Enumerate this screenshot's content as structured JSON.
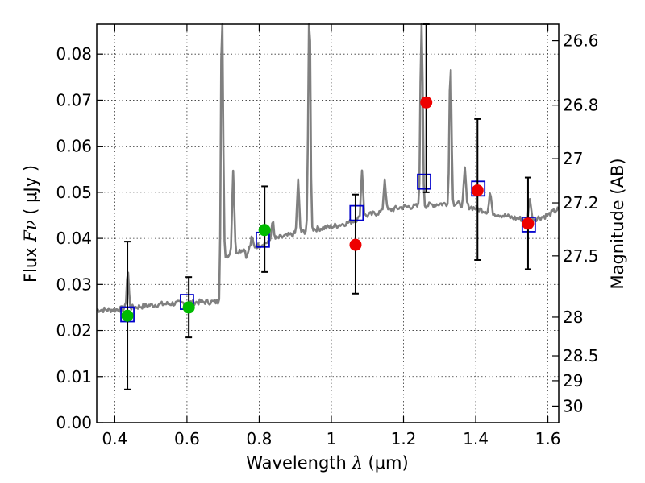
{
  "chart_data": {
    "type": "scatter",
    "title": "",
    "xlabel_text": "Wavelength  ",
    "xlabel_symbol": "λ",
    "xlabel_unit": " (μm)",
    "ylabel_text": "Flux  ",
    "ylabel_symbol": "Fν",
    "ylabel_unit": " ( μJy )",
    "y2label": "Magnitude (AB)",
    "xlim": [
      0.35,
      1.63
    ],
    "ylim": [
      0.0,
      0.0865
    ],
    "grid": true,
    "xticks": [
      0.4,
      0.6,
      0.8,
      1.0,
      1.2,
      1.4,
      1.6
    ],
    "xtick_labels": [
      "0.4",
      "0.6",
      "0.8",
      "1",
      "1.2",
      "1.4",
      "1.6"
    ],
    "yticks": [
      0.0,
      0.01,
      0.02,
      0.03,
      0.04,
      0.05,
      0.06,
      0.07,
      0.08
    ],
    "ytick_labels": [
      "0.00",
      "0.01",
      "0.02",
      "0.03",
      "0.04",
      "0.05",
      "0.06",
      "0.07",
      "0.08"
    ],
    "mag_ticks": [
      {
        "label": "26.6",
        "flux": 0.0829
      },
      {
        "label": "26.8",
        "flux": 0.0689
      },
      {
        "label": "27",
        "flux": 0.0573
      },
      {
        "label": "27.2",
        "flux": 0.0477
      },
      {
        "label": "27.5",
        "flux": 0.0362
      },
      {
        "label": "28",
        "flux": 0.0229
      },
      {
        "label": "28.5",
        "flux": 0.0145
      },
      {
        "label": "29",
        "flux": 0.0091
      },
      {
        "label": "30",
        "flux": 0.0036
      }
    ],
    "colors": {
      "spectrum": "#808080",
      "model_box": "#0000cc",
      "green": "#00bb00",
      "red": "#ee0000",
      "errorbar": "#000000"
    },
    "spectrum": {
      "continuum": [
        [
          0.35,
          0.0245
        ],
        [
          0.4,
          0.0245
        ],
        [
          0.45,
          0.025
        ],
        [
          0.5,
          0.0255
        ],
        [
          0.55,
          0.0258
        ],
        [
          0.6,
          0.026
        ],
        [
          0.65,
          0.0262
        ],
        [
          0.69,
          0.0262
        ],
        [
          0.7,
          0.036
        ],
        [
          0.75,
          0.0375
        ],
        [
          0.8,
          0.0385
        ],
        [
          0.85,
          0.04
        ],
        [
          0.9,
          0.041
        ],
        [
          0.95,
          0.042
        ],
        [
          1.0,
          0.0425
        ],
        [
          1.05,
          0.0435
        ],
        [
          1.1,
          0.045
        ],
        [
          1.15,
          0.046
        ],
        [
          1.2,
          0.0468
        ],
        [
          1.25,
          0.047
        ],
        [
          1.3,
          0.0475
        ],
        [
          1.35,
          0.0475
        ],
        [
          1.4,
          0.0465
        ],
        [
          1.45,
          0.0455
        ],
        [
          1.5,
          0.0445
        ],
        [
          1.55,
          0.044
        ],
        [
          1.6,
          0.045
        ],
        [
          1.63,
          0.0465
        ]
      ],
      "lines": [
        {
          "x": 0.436,
          "h": 0.033
        },
        {
          "x": 0.697,
          "h": 0.095
        },
        {
          "x": 0.728,
          "h": 0.055
        },
        {
          "x": 0.766,
          "h": 0.036
        },
        {
          "x": 0.78,
          "h": 0.04
        },
        {
          "x": 0.837,
          "h": 0.044
        },
        {
          "x": 0.908,
          "h": 0.0525
        },
        {
          "x": 0.939,
          "h": 0.095
        },
        {
          "x": 1.085,
          "h": 0.055
        },
        {
          "x": 1.148,
          "h": 0.053
        },
        {
          "x": 1.25,
          "h": 0.095
        },
        {
          "x": 1.33,
          "h": 0.079
        },
        {
          "x": 1.37,
          "h": 0.055
        },
        {
          "x": 1.44,
          "h": 0.05
        },
        {
          "x": 1.55,
          "h": 0.049
        }
      ]
    },
    "series": [
      {
        "kind": "model-box",
        "points": [
          {
            "x": 0.435,
            "y": 0.0235
          },
          {
            "x": 0.6,
            "y": 0.0262
          },
          {
            "x": 0.81,
            "y": 0.0397
          },
          {
            "x": 1.07,
            "y": 0.0455
          },
          {
            "x": 1.257,
            "y": 0.0523
          },
          {
            "x": 1.407,
            "y": 0.0508
          },
          {
            "x": 1.547,
            "y": 0.043
          }
        ]
      },
      {
        "kind": "green-detections",
        "points": [
          {
            "x": 0.435,
            "y": 0.0232,
            "lo": 0.0072,
            "hi": 0.0393
          },
          {
            "x": 0.605,
            "y": 0.025,
            "lo": 0.0185,
            "hi": 0.0316
          },
          {
            "x": 0.815,
            "y": 0.0418,
            "lo": 0.0327,
            "hi": 0.0513
          }
        ]
      },
      {
        "kind": "red-detections",
        "points": [
          {
            "x": 1.067,
            "y": 0.0386,
            "lo": 0.028,
            "hi": 0.0495
          },
          {
            "x": 1.263,
            "y": 0.0695,
            "lo": 0.05,
            "hi": 0.0865
          },
          {
            "x": 1.405,
            "y": 0.0504,
            "lo": 0.0353,
            "hi": 0.0659
          },
          {
            "x": 1.545,
            "y": 0.0432,
            "lo": 0.0333,
            "hi": 0.0532
          }
        ]
      }
    ]
  }
}
